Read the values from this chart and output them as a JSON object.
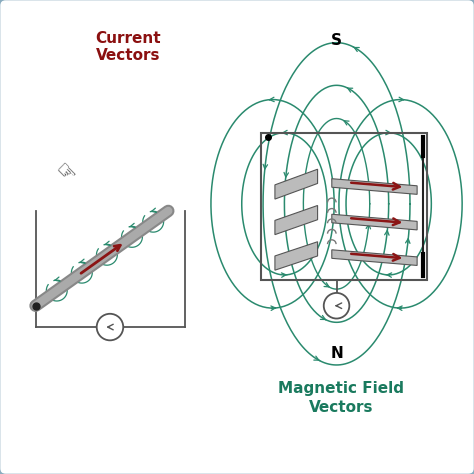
{
  "background_color": "#ffffff",
  "border_color": "#8aacbf",
  "title_left": "Current\nVectors",
  "title_left_color": "#8b1010",
  "title_right": "Magnetic Field\nVectors",
  "title_right_color": "#1a7a5e",
  "label_S": "S",
  "label_N": "N",
  "wire_color": "#888888",
  "arrow_color": "#8b1515",
  "field_line_color": "#2a8a6e",
  "circuit_color": "#555555",
  "coil_color": "#999999",
  "plate_face": "#bbbbbb",
  "plate_edge": "#555555"
}
